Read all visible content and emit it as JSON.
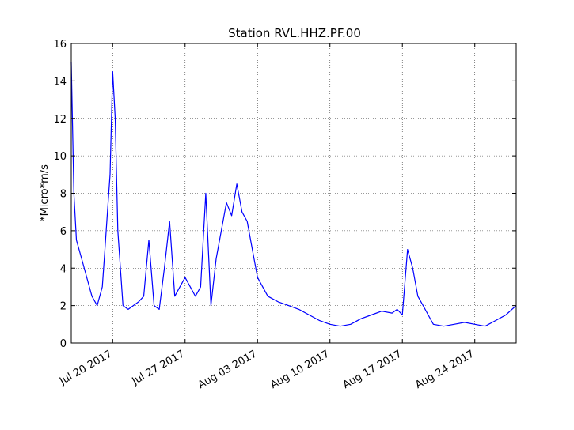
{
  "chart_data": {
    "type": "line",
    "title": "Station RVL.HHZ.PF.00",
    "xlabel": "",
    "ylabel": "*Micro*m/s",
    "ylim": [
      0,
      16
    ],
    "xlim": [
      "2017-07-16",
      "2017-08-28"
    ],
    "yticks": [
      0,
      2,
      4,
      6,
      8,
      10,
      12,
      14,
      16
    ],
    "xticks": [
      "2017-07-20",
      "2017-07-27",
      "2017-08-03",
      "2017-08-10",
      "2017-08-17",
      "2017-08-24"
    ],
    "xtick_labels": [
      "Jul 20 2017",
      "Jul 27 2017",
      "Aug 03 2017",
      "Aug 10 2017",
      "Aug 17 2017",
      "Aug 24 2017"
    ],
    "grid": true,
    "color": "#0000ff",
    "series": [
      {
        "x": [
          "2017-07-16",
          "2017-07-16T06:00",
          "2017-07-16T12:00",
          "2017-07-17",
          "2017-07-17T12:00",
          "2017-07-18",
          "2017-07-18T12:00",
          "2017-07-19",
          "2017-07-19T06:00",
          "2017-07-19T12:00",
          "2017-07-19T18:00",
          "2017-07-20",
          "2017-07-20T06:00",
          "2017-07-20T12:00",
          "2017-07-21",
          "2017-07-21T12:00",
          "2017-07-22",
          "2017-07-22T12:00",
          "2017-07-23",
          "2017-07-23T12:00",
          "2017-07-24",
          "2017-07-24T12:00",
          "2017-07-25",
          "2017-07-25T12:00",
          "2017-07-26",
          "2017-07-26T12:00",
          "2017-07-27",
          "2017-07-27T12:00",
          "2017-07-28",
          "2017-07-28T12:00",
          "2017-07-29",
          "2017-07-29T12:00",
          "2017-07-30",
          "2017-07-30T12:00",
          "2017-07-31",
          "2017-07-31T12:00",
          "2017-08-01",
          "2017-08-01T12:00",
          "2017-08-02",
          "2017-08-02T12:00",
          "2017-08-03",
          "2017-08-03T12:00",
          "2017-08-04",
          "2017-08-05",
          "2017-08-06",
          "2017-08-07",
          "2017-08-08",
          "2017-08-09",
          "2017-08-10",
          "2017-08-11",
          "2017-08-12",
          "2017-08-13",
          "2017-08-14",
          "2017-08-15",
          "2017-08-16",
          "2017-08-16T12:00",
          "2017-08-17",
          "2017-08-17T12:00",
          "2017-08-18",
          "2017-08-18T12:00",
          "2017-08-19",
          "2017-08-19T12:00",
          "2017-08-20",
          "2017-08-21",
          "2017-08-22",
          "2017-08-23",
          "2017-08-24",
          "2017-08-25",
          "2017-08-26",
          "2017-08-27",
          "2017-08-28"
        ],
        "y": [
          15.0,
          8.0,
          5.5,
          4.5,
          3.5,
          2.5,
          2.0,
          3.0,
          5.0,
          7.0,
          9.0,
          14.5,
          12.0,
          6.0,
          2.0,
          1.8,
          2.0,
          2.2,
          2.5,
          5.5,
          2.0,
          1.8,
          4.0,
          6.5,
          2.5,
          3.0,
          3.5,
          3.0,
          2.5,
          3.0,
          8.0,
          2.0,
          4.5,
          6.0,
          7.5,
          6.8,
          8.5,
          7.0,
          6.5,
          5.0,
          3.5,
          3.0,
          2.5,
          2.2,
          2.0,
          1.8,
          1.5,
          1.2,
          1.0,
          0.9,
          1.0,
          1.3,
          1.5,
          1.7,
          1.6,
          1.8,
          1.5,
          5.0,
          4.0,
          2.5,
          2.0,
          1.5,
          1.0,
          0.9,
          1.0,
          1.1,
          1.0,
          0.9,
          1.2,
          1.5,
          2.0
        ]
      }
    ]
  }
}
